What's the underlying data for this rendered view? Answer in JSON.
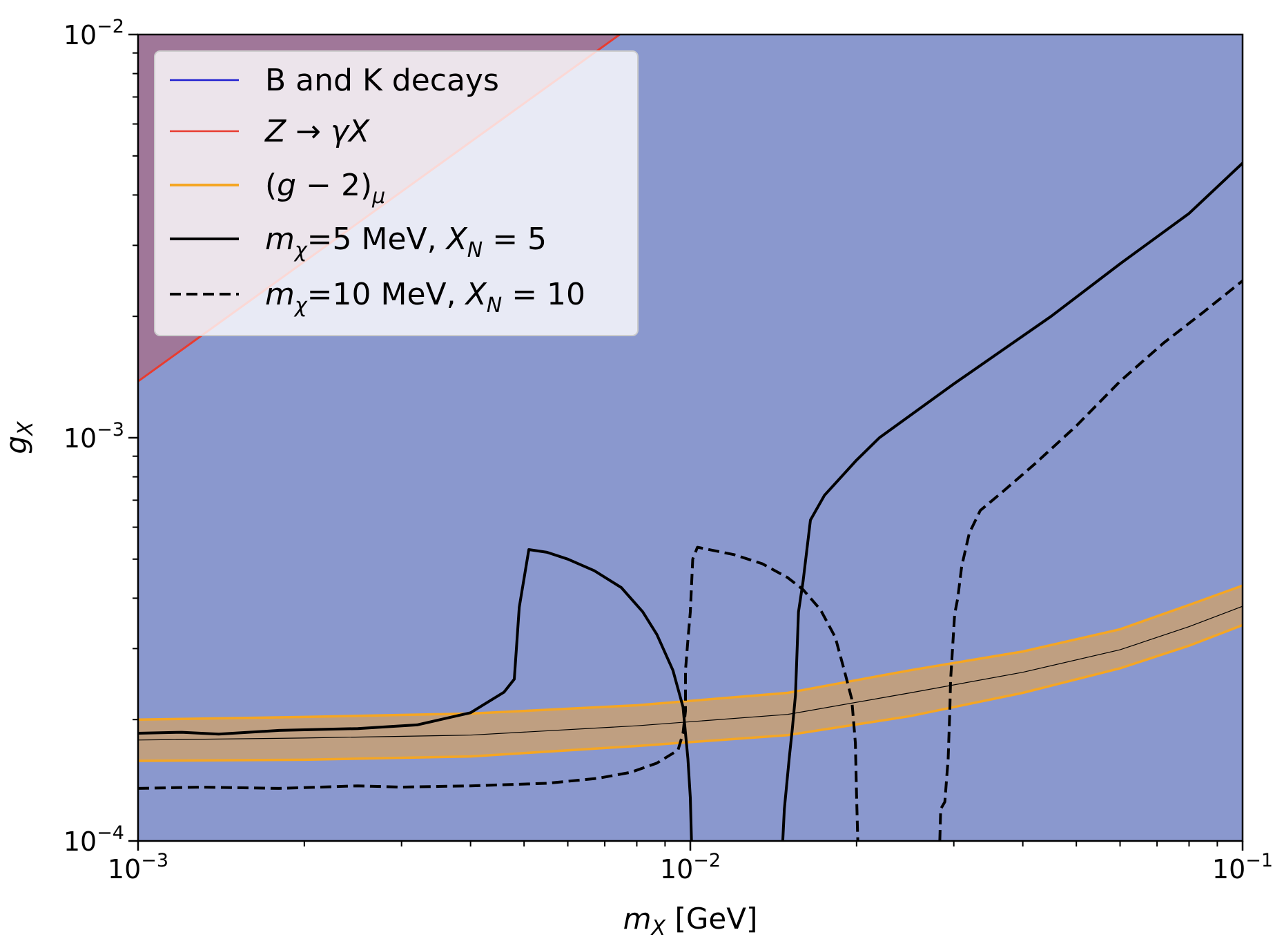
{
  "chart_data": {
    "type": "line",
    "title": "",
    "xlabel": {
      "main": "m",
      "sub": "X",
      "unit": " [GeV]"
    },
    "ylabel": {
      "main": "g",
      "sub": "X"
    },
    "xscale": "log",
    "yscale": "log",
    "xlim": [
      0.001,
      0.1
    ],
    "ylim": [
      0.0001,
      0.01
    ],
    "grid": false,
    "x_ticks": [
      {
        "value": 0.001,
        "base": "10",
        "exp": "−3"
      },
      {
        "value": 0.01,
        "base": "10",
        "exp": "−2"
      },
      {
        "value": 0.1,
        "base": "10",
        "exp": "−1"
      }
    ],
    "y_ticks": [
      {
        "value": 0.0001,
        "base": "10",
        "exp": "−4"
      },
      {
        "value": 0.001,
        "base": "10",
        "exp": "−3"
      },
      {
        "value": 0.01,
        "base": "10",
        "exp": "−2"
      }
    ],
    "legend_position": "top-left",
    "colors": {
      "excluded_bk": "#8a98ce",
      "excluded_z": "#a07799",
      "z_line": "#e83c30",
      "g2_band": "#bf9f81",
      "g2_edge": "#f5a623",
      "bk_line": "#1f1fd0",
      "curve": "#000000"
    },
    "legend": [
      {
        "kind": "bk",
        "parts": [
          {
            "t": "B and K decays",
            "s": "n"
          }
        ]
      },
      {
        "kind": "z",
        "parts": [
          {
            "t": "Z",
            "s": "i"
          },
          {
            "t": " → ",
            "s": "n"
          },
          {
            "t": "γX",
            "s": "i"
          }
        ]
      },
      {
        "kind": "g2",
        "parts": [
          {
            "t": "(",
            "s": "n"
          },
          {
            "t": "g",
            "s": "i"
          },
          {
            "t": " − 2)",
            "s": "n"
          },
          {
            "t": "μ",
            "s": "sub"
          }
        ]
      },
      {
        "kind": "solid",
        "parts": [
          {
            "t": "m",
            "s": "i"
          },
          {
            "t": "χ",
            "s": "sub"
          },
          {
            "t": "=5 MeV, ",
            "s": "n"
          },
          {
            "t": "X",
            "s": "i"
          },
          {
            "t": "N",
            "s": "sub"
          },
          {
            "t": " = 5",
            "s": "n"
          }
        ]
      },
      {
        "kind": "dashed",
        "parts": [
          {
            "t": "m",
            "s": "i"
          },
          {
            "t": "χ",
            "s": "sub"
          },
          {
            "t": "=10 MeV, ",
            "s": "n"
          },
          {
            "t": "X",
            "s": "i"
          },
          {
            "t": "N",
            "s": "sub"
          },
          {
            "t": " = 10",
            "s": "n"
          }
        ]
      }
    ],
    "z_boundary": [
      [
        0.001,
        0.00138
      ],
      [
        0.00745,
        0.01
      ]
    ],
    "g2_band": {
      "upper": [
        [
          0.001,
          0.0002
        ],
        [
          0.002,
          0.000203
        ],
        [
          0.004,
          0.000207
        ],
        [
          0.008,
          0.000217
        ],
        [
          0.015,
          0.000233
        ],
        [
          0.025,
          0.000265
        ],
        [
          0.04,
          0.000295
        ],
        [
          0.06,
          0.000335
        ],
        [
          0.08,
          0.000385
        ],
        [
          0.1,
          0.00043
        ]
      ],
      "lower": [
        [
          0.001,
          0.000158
        ],
        [
          0.002,
          0.000159
        ],
        [
          0.004,
          0.000162
        ],
        [
          0.008,
          0.000172
        ],
        [
          0.015,
          0.000183
        ],
        [
          0.025,
          0.000204
        ],
        [
          0.04,
          0.000233
        ],
        [
          0.06,
          0.000268
        ],
        [
          0.08,
          0.000305
        ],
        [
          0.1,
          0.000343
        ]
      ],
      "central": [
        [
          0.001,
          0.000178
        ],
        [
          0.002,
          0.00018
        ],
        [
          0.004,
          0.000183
        ],
        [
          0.008,
          0.000193
        ],
        [
          0.015,
          0.000206
        ],
        [
          0.025,
          0.000233
        ],
        [
          0.04,
          0.000262
        ],
        [
          0.06,
          0.000298
        ],
        [
          0.08,
          0.00034
        ],
        [
          0.1,
          0.000382
        ]
      ]
    },
    "series": [
      {
        "name": "mχ=5 MeV, XN = 5",
        "style": "solid",
        "segments": [
          [
            [
              0.001,
              0.000185
            ],
            [
              0.0012,
              0.000186
            ],
            [
              0.0014,
              0.000184
            ],
            [
              0.0018,
              0.000188
            ],
            [
              0.0025,
              0.00019
            ],
            [
              0.0032,
              0.000194
            ],
            [
              0.004,
              0.000208
            ],
            [
              0.0046,
              0.000234
            ],
            [
              0.0048,
              0.000252
            ],
            [
              0.0049,
              0.00038
            ],
            [
              0.0051,
              0.000528
            ],
            [
              0.0055,
              0.00052
            ],
            [
              0.006,
              0.0005
            ],
            [
              0.0067,
              0.000468
            ],
            [
              0.0075,
              0.000425
            ],
            [
              0.0082,
              0.00037
            ],
            [
              0.0087,
              0.000325
            ],
            [
              0.0093,
              0.000265
            ],
            [
              0.0097,
              0.000215
            ],
            [
              0.0099,
              0.00016
            ],
            [
              0.01,
              0.000128
            ],
            [
              0.01005,
              0.0001
            ]
          ],
          [
            [
              0.0147,
              0.0001
            ],
            [
              0.0148,
              0.00012
            ],
            [
              0.0151,
              0.00016
            ],
            [
              0.0153,
              0.00019
            ],
            [
              0.0155,
              0.00023
            ],
            [
              0.0157,
              0.00037
            ],
            [
              0.016,
              0.00044
            ],
            [
              0.0165,
              0.000625
            ],
            [
              0.0175,
              0.00072
            ],
            [
              0.02,
              0.00088
            ],
            [
              0.022,
              0.001
            ],
            [
              0.03,
              0.00136
            ],
            [
              0.045,
              0.002
            ],
            [
              0.06,
              0.0027
            ],
            [
              0.08,
              0.0036
            ],
            [
              0.1,
              0.0048
            ]
          ]
        ]
      },
      {
        "name": "mχ=10 MeV, XN = 10",
        "style": "dashed",
        "segments": [
          [
            [
              0.001,
              0.000135
            ],
            [
              0.0013,
              0.000136
            ],
            [
              0.0018,
              0.000135
            ],
            [
              0.0025,
              0.000137
            ],
            [
              0.003,
              0.000136
            ],
            [
              0.004,
              0.000137
            ],
            [
              0.0055,
              0.000139
            ],
            [
              0.0068,
              0.000143
            ],
            [
              0.0078,
              0.000148
            ],
            [
              0.0087,
              0.000156
            ],
            [
              0.0095,
              0.000168
            ],
            [
              0.0097,
              0.000185
            ],
            [
              0.0098,
              0.00021
            ],
            [
              0.0098,
              0.000265
            ],
            [
              0.0099,
              0.000315
            ],
            [
              0.01,
              0.00037
            ],
            [
              0.0101,
              0.0005
            ],
            [
              0.0103,
              0.000535
            ],
            [
              0.012,
              0.000513
            ],
            [
              0.0135,
              0.000487
            ],
            [
              0.015,
              0.00045
            ],
            [
              0.016,
              0.00042
            ],
            [
              0.0172,
              0.000375
            ],
            [
              0.0183,
              0.00032
            ],
            [
              0.019,
              0.000265
            ],
            [
              0.0196,
              0.000225
            ],
            [
              0.0199,
              0.000175
            ],
            [
              0.02,
              0.00013
            ],
            [
              0.0201,
              0.0001
            ]
          ],
          [
            [
              0.0283,
              0.0001
            ],
            [
              0.0284,
              0.00012
            ],
            [
              0.0289,
              0.000125
            ],
            [
              0.0293,
              0.00016
            ],
            [
              0.0295,
              0.00021
            ],
            [
              0.0296,
              0.00025
            ],
            [
              0.0301,
              0.000365
            ],
            [
              0.0305,
              0.0004
            ],
            [
              0.031,
              0.00048
            ],
            [
              0.032,
              0.00058
            ],
            [
              0.0335,
              0.00066
            ],
            [
              0.037,
              0.00074
            ],
            [
              0.042,
              0.00086
            ],
            [
              0.05,
              0.00107
            ],
            [
              0.06,
              0.00138
            ],
            [
              0.072,
              0.00172
            ],
            [
              0.085,
              0.00205
            ],
            [
              0.1,
              0.00245
            ]
          ]
        ]
      }
    ]
  }
}
